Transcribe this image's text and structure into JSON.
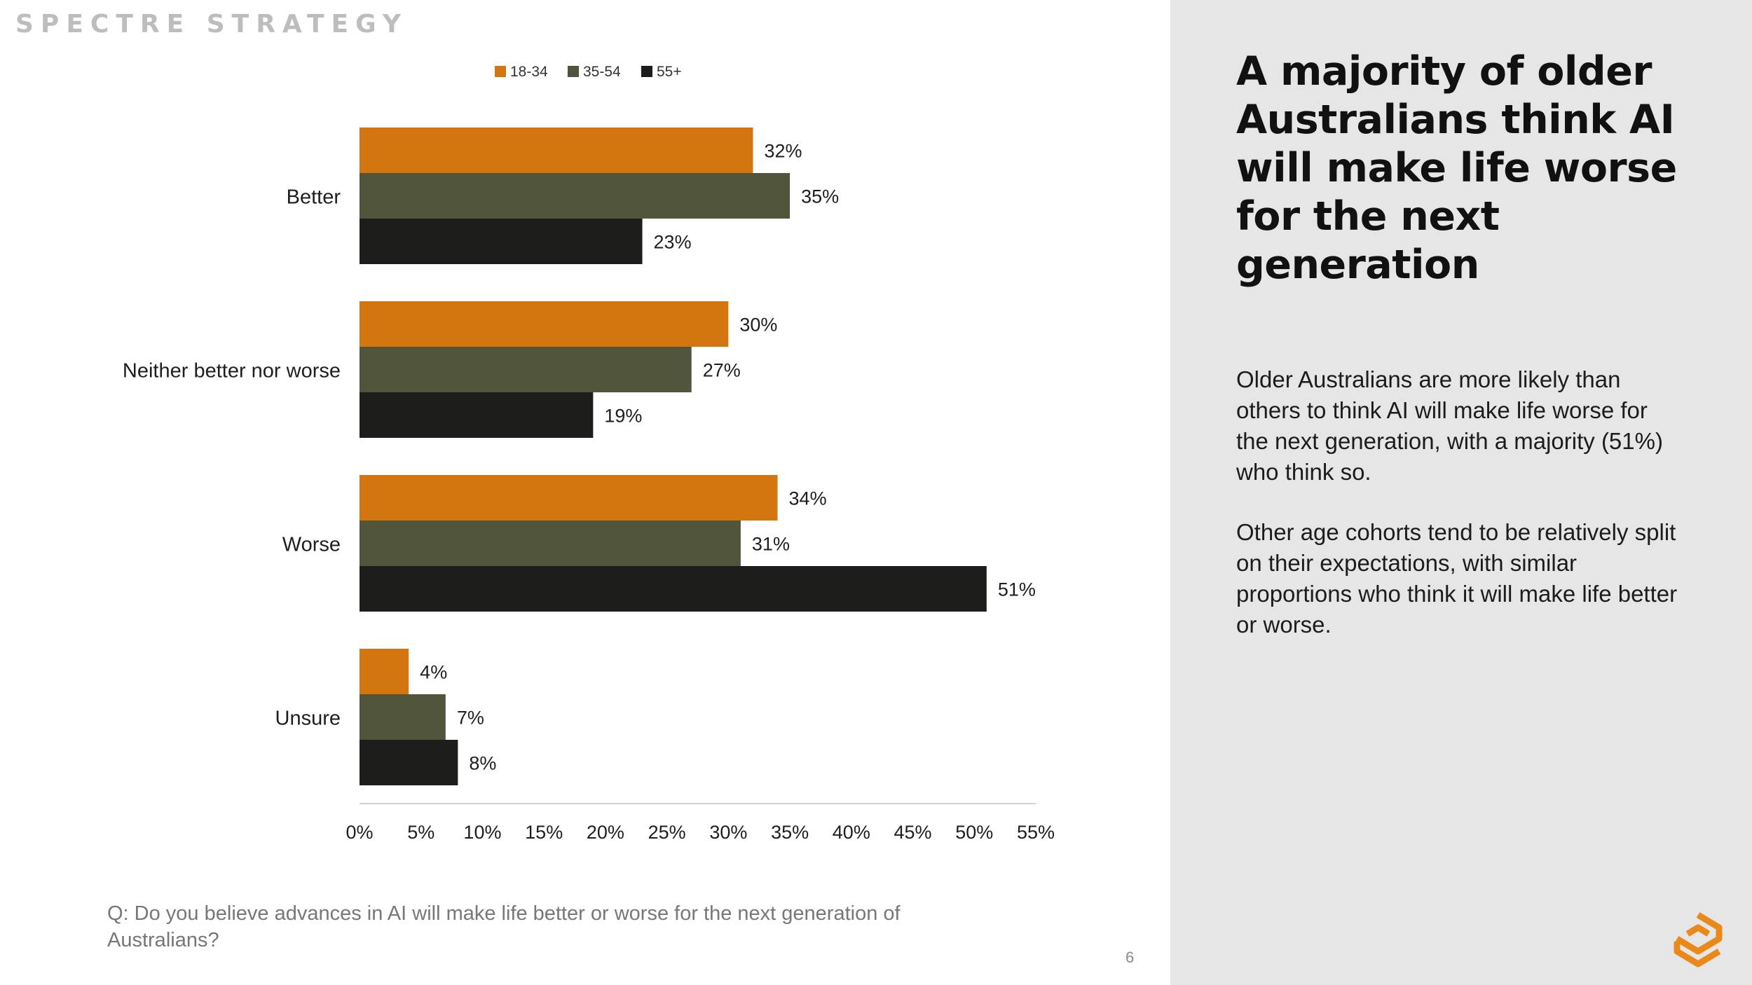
{
  "brand": "SPECTRE STRATEGY",
  "colors": {
    "age_18_34": "#d4760f",
    "age_35_54": "#4f543a",
    "age_55_plus": "#1d1d1b",
    "axis": "#d0d0d0",
    "panel_bg": "#e6e6e6",
    "logo": "#e8891a"
  },
  "chart_data": {
    "type": "bar",
    "orientation": "horizontal",
    "categories": [
      "Better",
      "Neither better nor worse",
      "Worse",
      "Unsure"
    ],
    "series": [
      {
        "name": "18-34",
        "values": [
          32,
          30,
          34,
          4
        ]
      },
      {
        "name": "35-54",
        "values": [
          35,
          27,
          31,
          7
        ]
      },
      {
        "name": "55+",
        "values": [
          23,
          19,
          51,
          8
        ]
      }
    ],
    "value_labels": [
      [
        "32%",
        "30%",
        "34%",
        "4%"
      ],
      [
        "35%",
        "27%",
        "31%",
        "7%"
      ],
      [
        "23%",
        "19%",
        "51%",
        "8%"
      ]
    ],
    "xlim": [
      0,
      55
    ],
    "x_ticks": [
      0,
      5,
      10,
      15,
      20,
      25,
      30,
      35,
      40,
      45,
      50,
      55
    ],
    "x_tick_labels": [
      "0%",
      "5%",
      "10%",
      "15%",
      "20%",
      "25%",
      "30%",
      "35%",
      "40%",
      "45%",
      "50%",
      "55%"
    ],
    "legend_position": "top-center",
    "grid": false
  },
  "question": "Q: Do you believe advances in AI will make life better or worse for the next generation of Australians?",
  "page_number": "6",
  "panel": {
    "headline": "A majority of older Australians think AI will make life worse for the next generation",
    "paragraph_1": "Older Australians are more likely than others to think AI will make life worse for the next generation, with a majority (51%) who think so.",
    "paragraph_2": "Other age cohorts tend to be relatively split on their expectations, with similar proportions who think it will make life better or worse."
  },
  "logo_icon": "spectre-logo-icon"
}
